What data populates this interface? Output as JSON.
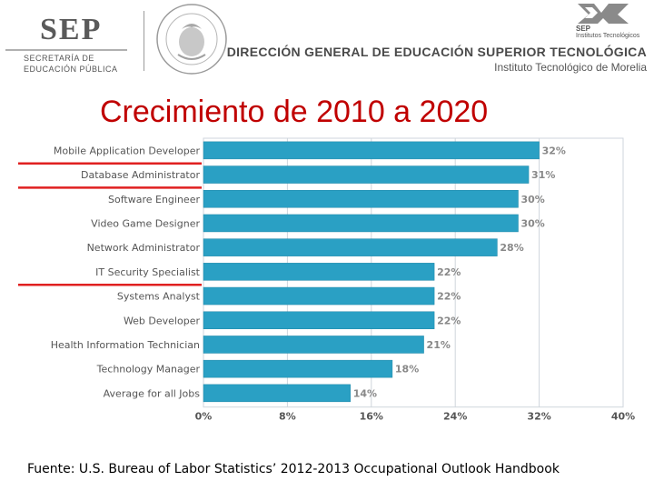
{
  "header": {
    "sep_logo_text": "SEP",
    "sep_subtitle_line1": "SECRETARÍA DE",
    "sep_subtitle_line2": "EDUCACIÓN PÚBLICA",
    "seal_text": "ESTADOS UNIDOS MEXICANOS",
    "title": "DIRECCIÓN GENERAL DE EDUCACIÓN SUPERIOR TECNOLÓGICA",
    "subtitle": "Instituto Tecnológico de Morelia",
    "it_logo_line1": "SEP",
    "it_logo_line2": "Institutos Tecnológicos"
  },
  "slide_title": "Crecimiento de 2010 a 2020",
  "footer": "Fuente: U.S. Bureau of Labor Statistics’ 2012-2013 Occupational Outlook Handbook",
  "chart_data": {
    "type": "bar",
    "orientation": "horizontal",
    "categories": [
      "Mobile Application Developer",
      "Database Administrator",
      "Software Engineer",
      "Video Game Designer",
      "Network Administrator",
      "IT Security Specialist",
      "Systems Analyst",
      "Web Developer",
      "Health Information Technician",
      "Technology Manager",
      "Average for all Jobs"
    ],
    "values": [
      32,
      31,
      30,
      30,
      28,
      22,
      22,
      22,
      21,
      18,
      14
    ],
    "value_labels": [
      "32%",
      "31%",
      "30%",
      "30%",
      "28%",
      "22%",
      "22%",
      "22%",
      "21%",
      "18%",
      "14%"
    ],
    "x_ticks": [
      0,
      8,
      16,
      24,
      32,
      40
    ],
    "x_tick_labels": [
      "0%",
      "8%",
      "16%",
      "24%",
      "32%",
      "40%"
    ],
    "xlim": [
      0,
      40
    ],
    "grid": true,
    "highlighted_categories": [
      "Database Administrator",
      "Software Engineer",
      "Systems Analyst"
    ],
    "colors": {
      "bar": "#2aa0c4",
      "bar_edge": "#1f87a8",
      "highlight": "#e02020",
      "text": "#555555",
      "grid": "#cfd6dc"
    }
  }
}
